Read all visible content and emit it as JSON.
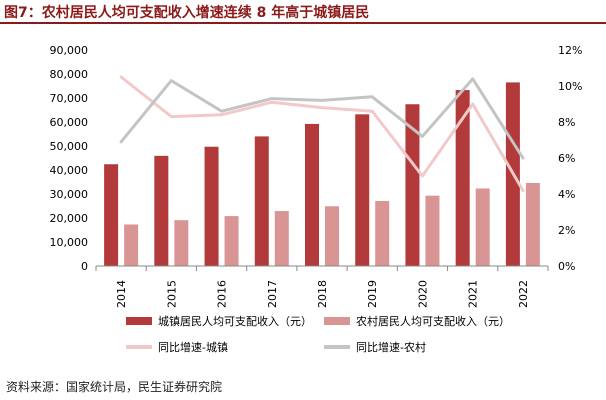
{
  "header": {
    "title": "图7：农村居民人均可支配收入增速连续 8 年高于城镇居民"
  },
  "footer": {
    "source": "资料来源：国家统计局，民生证券研究院"
  },
  "chart_data": {
    "type": "bar",
    "categories": [
      "2014",
      "2015",
      "2016",
      "2017",
      "2018",
      "2019",
      "2020",
      "2021",
      "2022"
    ],
    "left_axis": {
      "ylim": [
        0,
        90000
      ],
      "ticks": [
        "0",
        "10,000",
        "20,000",
        "30,000",
        "40,000",
        "50,000",
        "60,000",
        "70,000",
        "80,000",
        "90,000"
      ]
    },
    "right_axis": {
      "ylim": [
        0,
        12
      ],
      "ticks": [
        "0%",
        "2%",
        "4%",
        "6%",
        "8%",
        "10%",
        "12%"
      ]
    },
    "series": [
      {
        "name": "城镇居民人均可支配收入（元）",
        "kind": "bar",
        "axis": "left",
        "color": "#b23a3a",
        "values": [
          42400,
          45900,
          49700,
          54000,
          59200,
          63200,
          67400,
          73300,
          76500
        ]
      },
      {
        "name": "农村居民人均可支配收入（元）",
        "kind": "bar",
        "axis": "left",
        "color": "#d99494",
        "values": [
          17300,
          19100,
          20800,
          22900,
          24900,
          27100,
          29300,
          32300,
          34600
        ]
      },
      {
        "name": "同比增速-城镇",
        "kind": "line",
        "axis": "right",
        "color": "#f2c9c9",
        "values": [
          10.5,
          8.3,
          8.4,
          9.1,
          8.8,
          8.6,
          5.0,
          9.0,
          4.2
        ]
      },
      {
        "name": "同比增速-农村",
        "kind": "line",
        "axis": "right",
        "color": "#c4c4c4",
        "values": [
          6.9,
          10.3,
          8.6,
          9.3,
          9.2,
          9.4,
          7.2,
          10.4,
          6.0
        ]
      }
    ],
    "grid": false,
    "legend": "bottom"
  }
}
